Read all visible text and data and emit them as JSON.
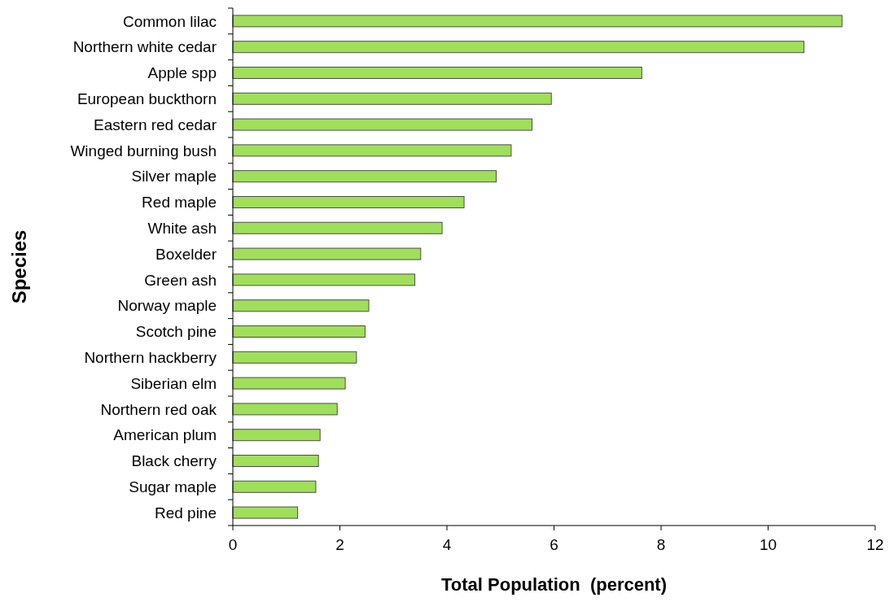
{
  "chart_data": {
    "type": "bar",
    "orientation": "horizontal",
    "ylabel": "Species",
    "xlabel": "Total Population  (percent)",
    "categories": [
      "Common lilac",
      "Northern white cedar",
      "Apple spp",
      "European buckthorn",
      "Eastern red cedar",
      "Winged burning bush",
      "Silver maple",
      "Red maple",
      "White ash",
      "Boxelder",
      "Green ash",
      "Norway maple",
      "Scotch pine",
      "Northern hackberry",
      "Siberian elm",
      "Northern red oak",
      "American plum",
      "Black cherry",
      "Sugar maple",
      "Red pine"
    ],
    "values": [
      11.38,
      10.67,
      7.64,
      5.95,
      5.59,
      5.2,
      4.92,
      4.32,
      3.91,
      3.51,
      3.4,
      2.54,
      2.47,
      2.31,
      2.1,
      1.95,
      1.63,
      1.6,
      1.55,
      1.21
    ],
    "color": "#9fdf5a",
    "xlim": [
      0,
      12
    ],
    "xticks": [
      0,
      2,
      4,
      6,
      8,
      10,
      12
    ],
    "grid": false
  }
}
